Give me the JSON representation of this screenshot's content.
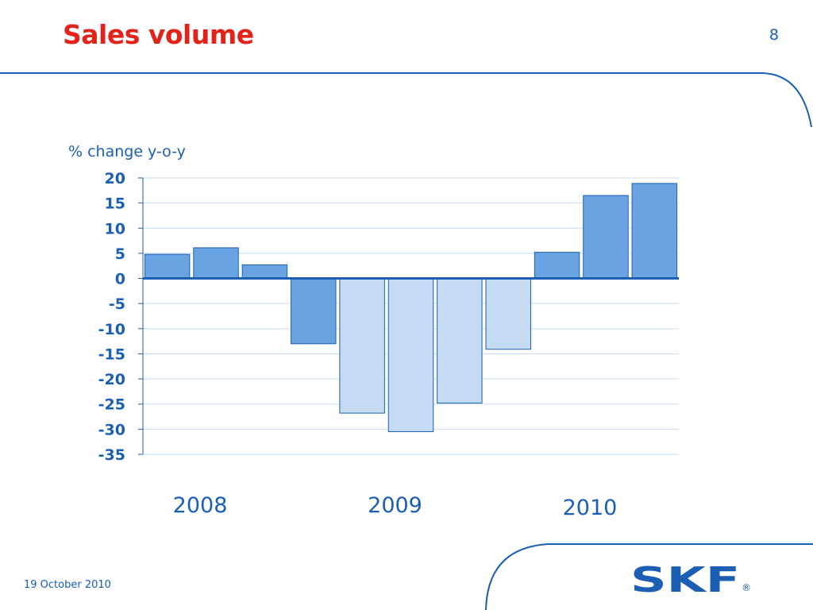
{
  "slide": {
    "title": "Sales volume",
    "page_number": "8",
    "footer_date": "19 October 2010"
  },
  "brand": {
    "logo_text": "SKF",
    "registered_mark": "®",
    "accent_color": "#1a5fb4",
    "title_color": "#e2231a"
  },
  "chart_data": {
    "type": "bar",
    "ylabel": "% change y-o-y",
    "ylim": [
      -35,
      20
    ],
    "yticks": [
      20,
      15,
      10,
      5,
      0,
      -5,
      -10,
      -15,
      -20,
      -25,
      -30,
      -35
    ],
    "grid": true,
    "values": [
      4.8,
      6.1,
      2.7,
      -13.0,
      -26.8,
      -30.5,
      -24.8,
      -14.1,
      5.2,
      16.5,
      18.9
    ],
    "bar_colors": [
      "#6aa3e2",
      "#6aa3e2",
      "#6aa3e2",
      "#6aa3e2",
      "#c4dbf3",
      "#c4dbf3",
      "#c4dbf3",
      "#c4dbf3",
      "#6aa3e2",
      "#6aa3e2",
      "#6aa3e2"
    ],
    "group_labels": [
      "2008",
      "2009",
      "2010"
    ]
  }
}
